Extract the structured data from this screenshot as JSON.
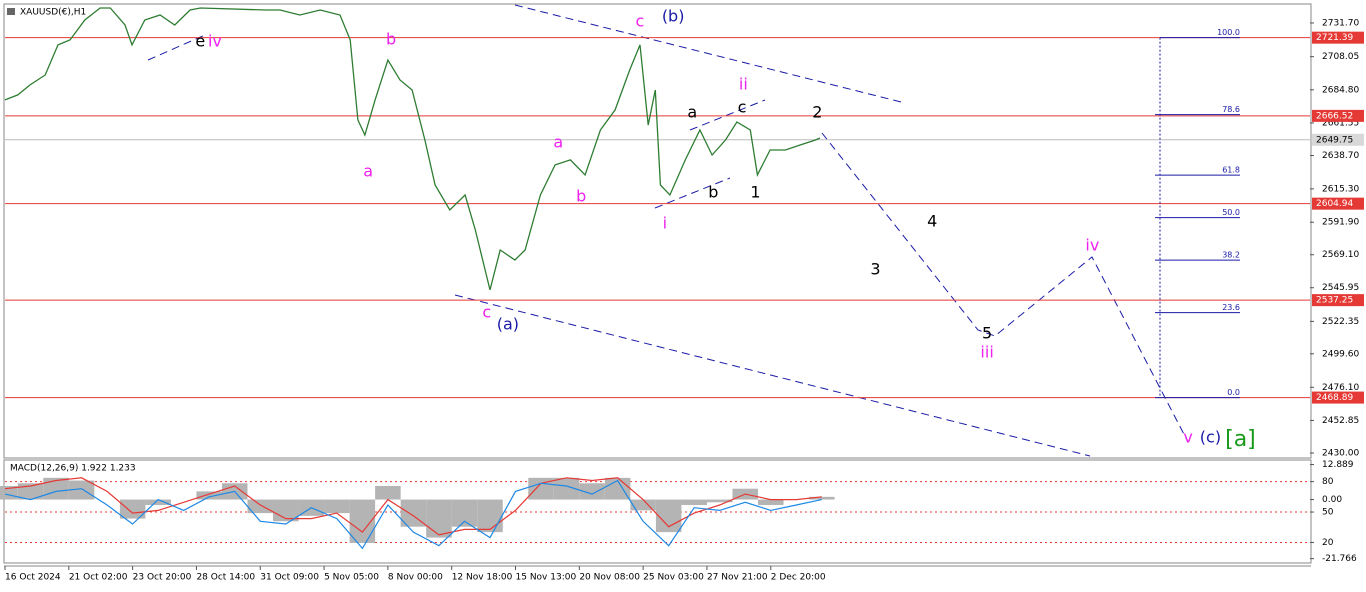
{
  "chart_data": [
    {
      "type": "line",
      "title": "XAUUSD(€),H1",
      "color": "#2e7d32",
      "x": [
        0,
        2.0,
        3.9,
        6.3,
        8.3,
        10.2,
        12.5,
        14.9,
        16.5,
        18.8,
        19.9,
        21.9,
        24.3,
        26.6,
        29.0,
        30.6,
        40.8,
        43.1,
        46.2,
        49.4,
        52.5,
        54.1,
        55.3,
        56.4,
        58.0,
        60.0,
        61.9,
        63.8,
        65.8,
        67.4,
        69.7,
        72.1,
        73.7,
        76.0,
        77.6,
        79.9,
        81.5,
        83.9,
        86.2,
        88.6,
        90.9,
        93.3,
        95.6,
        97.9,
        99.5,
        100.8,
        101.9,
        102.7,
        104.2,
        106.6,
        108.9,
        110.8,
        112.9,
        114.7,
        116.8,
        117.9,
        119.9,
        122.3,
        124.6,
        127.0,
        127.7
      ],
      "values": [
        2677.7,
        2681.2,
        2688.2,
        2695.2,
        2716.3,
        2719.8,
        2733.8,
        2742.2,
        2742.2,
        2730.3,
        2716.3,
        2733.8,
        2737.3,
        2730.3,
        2740.8,
        2742.2,
        2740.8,
        2740.8,
        2737.3,
        2740.8,
        2737.3,
        2719.8,
        2663.6,
        2653.1,
        2677.7,
        2705.7,
        2691.7,
        2684.7,
        2649.6,
        2618.0,
        2600.5,
        2611.0,
        2586.5,
        2544.4,
        2572.4,
        2565.4,
        2572.4,
        2611.0,
        2632.1,
        2635.6,
        2625.1,
        2656.6,
        2670.7,
        2698.7,
        2716.3,
        2660.1,
        2684.7,
        2618.0,
        2611.0,
        2635.6,
        2656.6,
        2639.1,
        2649.6,
        2662.2,
        2656.6,
        2625.1,
        2642.6,
        2642.6,
        2646.1,
        2649.6,
        2651.0
      ],
      "xlim": [
        0,
        204.5
      ],
      "xticks": [
        {
          "value": 0,
          "label": "16 Oct 2024"
        },
        {
          "value": 10,
          "label": "21 Oct 02:00"
        },
        {
          "value": 20,
          "label": "23 Oct 20:00"
        },
        {
          "value": 30,
          "label": "28 Oct 14:00"
        },
        {
          "value": 40,
          "label": "31 Oct 09:00"
        },
        {
          "value": 50,
          "label": "5 Nov 05:00"
        },
        {
          "value": 60,
          "label": "8 Nov 00:00"
        },
        {
          "value": 70,
          "label": "12 Nov 18:00"
        },
        {
          "value": 80,
          "label": "15 Nov 13:00"
        },
        {
          "value": 90,
          "label": "20 Nov 08:00"
        },
        {
          "value": 100,
          "label": "25 Nov 03:00"
        },
        {
          "value": 110,
          "label": "27 Nov 21:00"
        },
        {
          "value": 120,
          "label": "2 Dec 20:00"
        }
      ],
      "ylim": [
        2426.5,
        2744.3
      ],
      "yticks": [
        {
          "value": 2731.7,
          "label": "2731.70"
        },
        2708.05,
        {
          "value": 2684.8,
          "label": "2684.80"
        },
        2661.55,
        {
          "value": 2638.7,
          "label": "2638.70"
        },
        {
          "value": 2615.3,
          "label": "2615.30"
        },
        {
          "value": 2591.9,
          "label": "2591.90"
        },
        {
          "value": 2569.1,
          "label": "2569.10"
        },
        2545.95,
        2522.35,
        {
          "value": 2499.6,
          "label": "2499.60"
        },
        {
          "value": 2476.1,
          "label": "2476.10"
        },
        2452.85,
        {
          "value": 2430,
          "label": "2430.00"
        }
      ],
      "levels": [
        2721.39,
        2666.52,
        2604.94,
        2537.25,
        2468.89
      ],
      "level_color": "#e53935",
      "last_price": 2649.75,
      "fib": {
        "low": 2468.89,
        "high": 2721.39,
        "color": "#1a1aa6",
        "levels": [
          {
            "value": 100,
            "label": "100.0"
          },
          78.6,
          61.8,
          {
            "value": 50,
            "label": "50.0"
          },
          38.2,
          23.6,
          {
            "value": 0,
            "label": "0.0"
          }
        ]
      },
      "annotations": [
        {
          "text": "e",
          "color": "#000000",
          "x": 30.6,
          "y": 2718.4
        },
        {
          "text": "iv",
          "color": "#ee22ee",
          "x": 32.9,
          "y": 2718.4
        },
        {
          "text": "b",
          "color": "#ee22ee",
          "x": 60.5,
          "y": 2719.8
        },
        {
          "text": "a",
          "color": "#ee22ee",
          "x": 56.9,
          "y": 2627.2
        },
        {
          "text": "c",
          "color": "#ee22ee",
          "x": 75.5,
          "y": 2528.2
        },
        {
          "text": "(a)",
          "color": "#1a1aa6",
          "x": 78.8,
          "y": 2519.8
        },
        {
          "text": "a",
          "color": "#ee22ee",
          "x": 86.7,
          "y": 2647.5
        },
        {
          "text": "b",
          "color": "#ee22ee",
          "x": 90.3,
          "y": 2609.6
        },
        {
          "text": "c",
          "color": "#ee22ee",
          "x": 99.5,
          "y": 2732.4
        },
        {
          "text": "(b)",
          "color": "#1a1aa6",
          "x": 104.7,
          "y": 2735.9
        },
        {
          "text": "i",
          "color": "#ee22ee",
          "x": 103.4,
          "y": 2590.7
        },
        {
          "text": "a",
          "color": "#000000",
          "x": 107.7,
          "y": 2668.6
        },
        {
          "text": "b",
          "color": "#000000",
          "x": 111.0,
          "y": 2612.4
        },
        {
          "text": "c",
          "color": "#000000",
          "x": 115.5,
          "y": 2672.1
        },
        {
          "text": "ii",
          "color": "#ee22ee",
          "x": 115.7,
          "y": 2688.2
        },
        {
          "text": "1",
          "color": "#000000",
          "x": 117.6,
          "y": 2612.4
        },
        {
          "text": "2",
          "color": "#000000",
          "x": 127.3,
          "y": 2668.6
        },
        {
          "text": "3",
          "color": "#000000",
          "x": 136.4,
          "y": 2558.4
        },
        {
          "text": "4",
          "color": "#000000",
          "x": 145.3,
          "y": 2592.1
        },
        {
          "text": "5",
          "color": "#000000",
          "x": 153.9,
          "y": 2513.5
        },
        {
          "text": "iii",
          "color": "#ee22ee",
          "x": 153.9,
          "y": 2500.2
        },
        {
          "text": "iv",
          "color": "#ee22ee",
          "x": 170.4,
          "y": 2575.3
        },
        {
          "text": "v",
          "color": "#ee22ee",
          "x": 185.4,
          "y": 2440.5
        },
        {
          "text": "(c)",
          "color": "#1a1aa6",
          "x": 188.9,
          "y": 2440.5
        },
        {
          "text": "[a]",
          "color": "#1a9a1a",
          "x": 193.6,
          "y": 2439.1
        }
      ]
    },
    {
      "type": "macd",
      "title": "MACD(12,26,9) 1.922 1.233",
      "x": [
        0,
        4,
        8,
        12,
        16,
        20,
        24,
        28,
        32,
        36,
        40,
        44,
        48,
        52,
        56,
        60,
        64,
        68,
        72,
        76,
        80,
        84,
        88,
        92,
        96,
        100,
        104,
        108,
        112,
        116,
        120,
        124,
        128
      ],
      "xlim": [
        0,
        204.5
      ],
      "ylim": [
        -23.0,
        14.2
      ],
      "yticks": [
        12.889,
        {
          "value": 6.6,
          "label": "80"
        },
        {
          "value": 0,
          "label": "0.00"
        },
        {
          "value": -4.6,
          "label": "50"
        },
        {
          "value": -15.8,
          "label": "20"
        },
        -21.766
      ],
      "series": [
        {
          "color": "#b4b4b4",
          "values": [
            5,
            6,
            8,
            7,
            0,
            -7,
            -2,
            0,
            3,
            6,
            -5,
            -8,
            -6,
            -5,
            -16,
            5,
            -10,
            -14,
            -10,
            -12,
            0,
            8,
            8,
            6,
            8,
            -4,
            -12,
            -2,
            -1,
            4,
            -2,
            0,
            1
          ]
        },
        {
          "color": "#e53935",
          "values": [
            4,
            5,
            7,
            8,
            3,
            -5,
            -4,
            -1,
            2,
            5,
            -2,
            -7,
            -7,
            -5,
            -12,
            0,
            -6,
            -13,
            -11,
            -11,
            -4,
            6,
            8,
            7,
            8,
            0,
            -10,
            -5,
            -2,
            2,
            0,
            0,
            1
          ]
        },
        {
          "color": "#1e88e5",
          "values": [
            2,
            0,
            3,
            4,
            -2,
            -9,
            0,
            -4,
            1,
            3,
            -8,
            -9,
            -3,
            -7,
            -18,
            -2,
            -12,
            -17,
            -8,
            -14,
            3,
            6,
            5,
            2,
            7,
            -8,
            -17,
            -3,
            -4,
            -1,
            -4,
            -2,
            0
          ]
        }
      ]
    }
  ]
}
